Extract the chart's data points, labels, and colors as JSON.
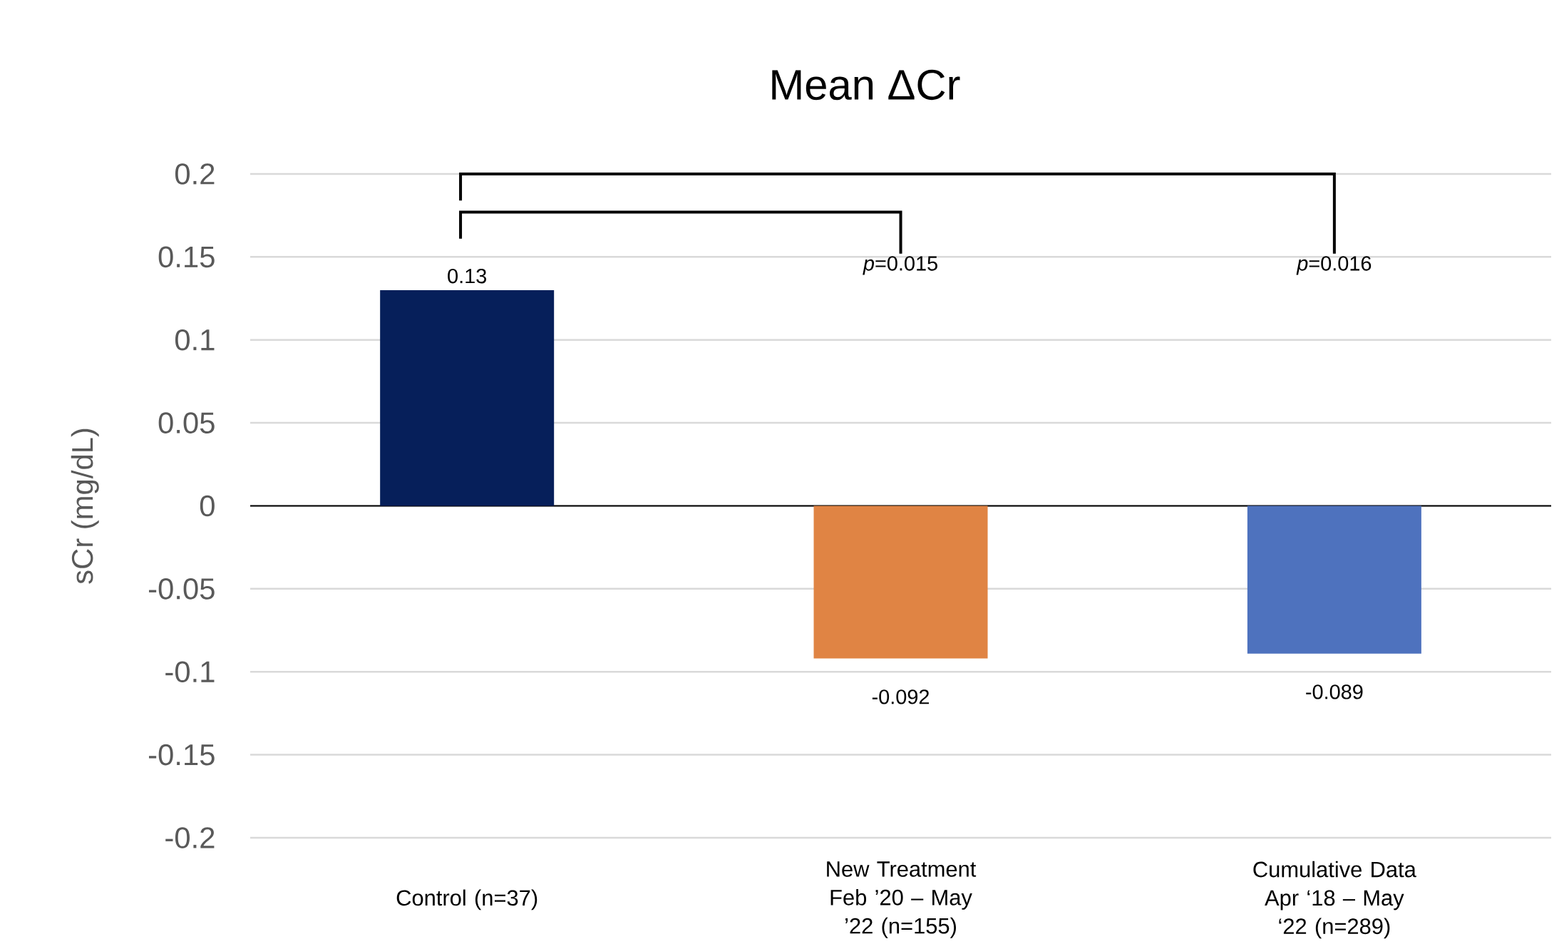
{
  "chart_data": {
    "type": "bar",
    "title": "Mean ΔCr",
    "ylabel": "sCr (mg/dL)",
    "categories": [
      "Control (n=37)",
      "New Treatment Feb ’20 – May ’22 (n=155)",
      "Cumulative Data Apr ‘18 – May ‘22 (n=289)"
    ],
    "values": [
      0.13,
      -0.092,
      -0.089
    ],
    "colors": [
      "#061f5a",
      "#e08444",
      "#4e72be"
    ],
    "value_labels": [
      "0.13",
      "-0.092",
      "-0.089"
    ],
    "annotations": [
      "*p*=0.015",
      "*p*=0.016"
    ],
    "ylim": [
      -0.2,
      0.2
    ],
    "yticks": [
      -0.2,
      -0.15,
      -0.1,
      -0.05,
      0,
      0.05,
      0.1,
      0.15,
      0.2
    ],
    "grid": "y"
  }
}
